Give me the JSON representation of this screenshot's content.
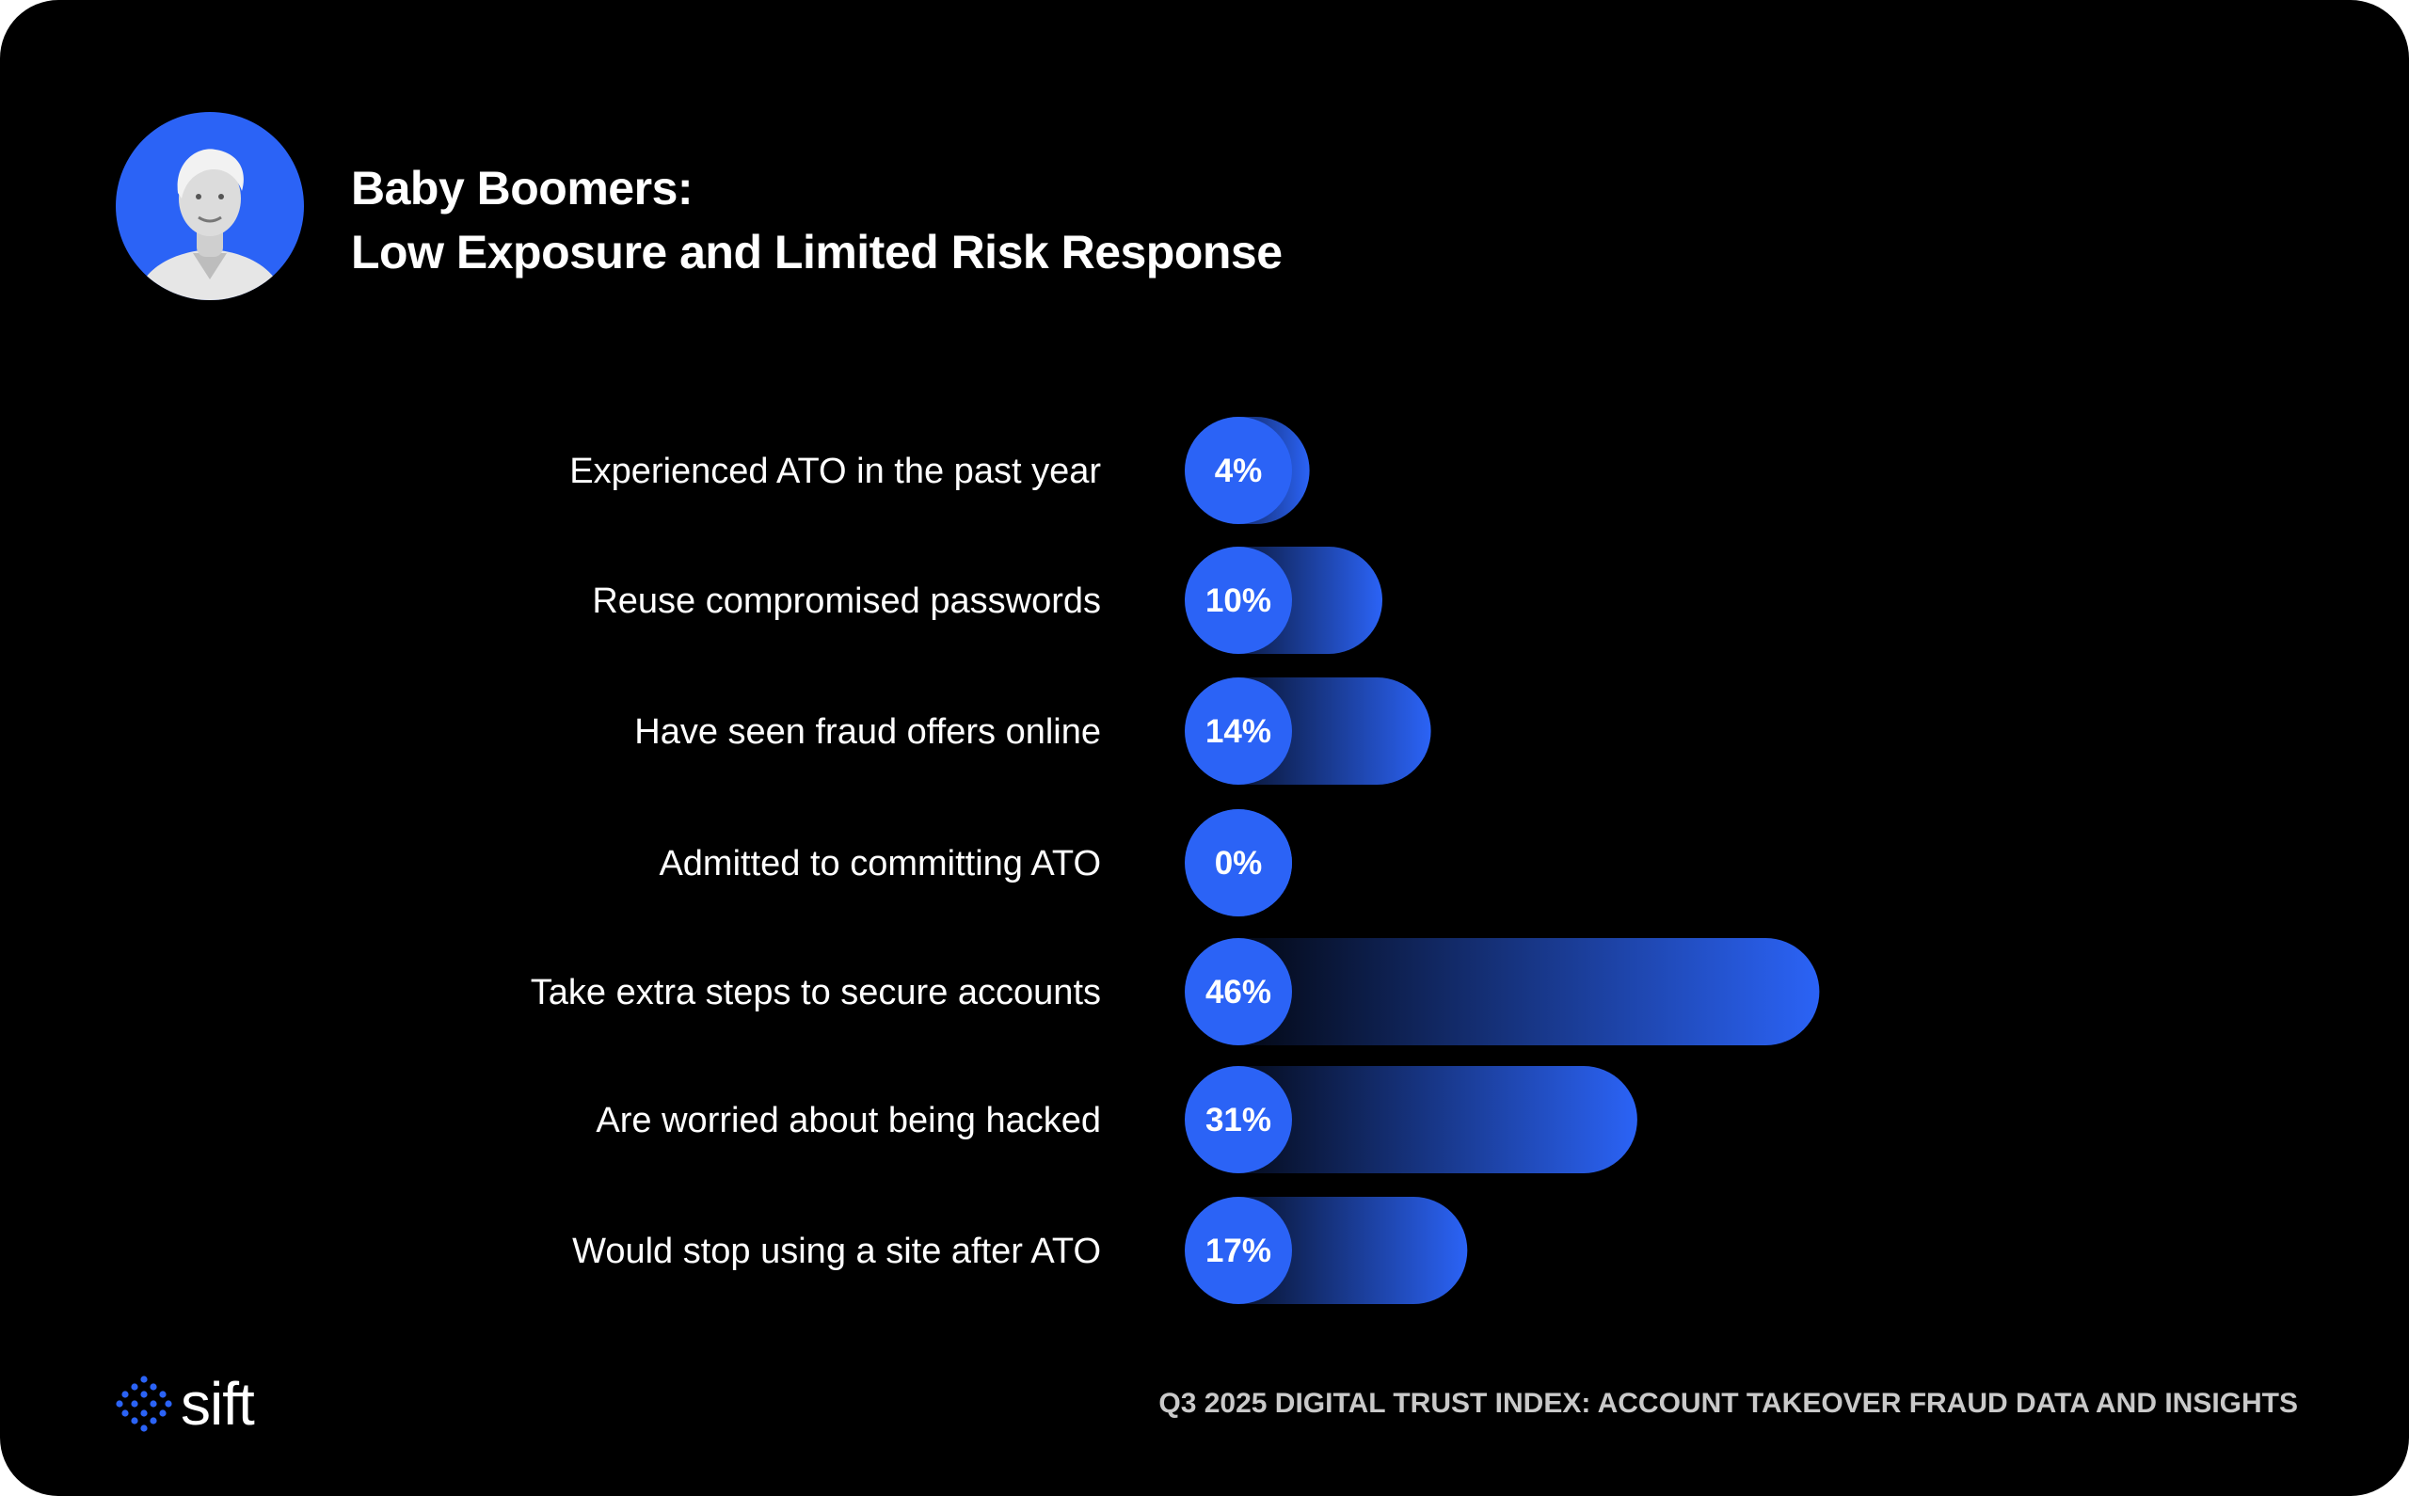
{
  "header": {
    "title_line1": "Baby Boomers:",
    "title_line2": "Low Exposure and Limited Risk Response"
  },
  "colors": {
    "accent": "#2b63f6",
    "background": "#000000",
    "footer_text": "#c9c9c9"
  },
  "chart_data": {
    "type": "bar",
    "orientation": "horizontal",
    "title": "Baby Boomers: Low Exposure and Limited Risk Response",
    "categories": [
      "Experienced ATO in the past year",
      "Reuse compromised passwords",
      "Have seen fraud offers online",
      "Admitted to committing ATO",
      "Take extra steps to secure accounts",
      "Are worried about being hacked",
      "Would stop using a site after ATO"
    ],
    "values": [
      4,
      10,
      14,
      0,
      46,
      31,
      17
    ],
    "value_labels": [
      "4%",
      "10%",
      "14%",
      "0%",
      "46%",
      "31%",
      "17%"
    ],
    "unit": "%",
    "xlim": [
      0,
      100
    ],
    "grid": false,
    "legend": "none"
  },
  "footer": {
    "brand": "sift",
    "report_title": "Q3 2025 DIGITAL TRUST INDEX: ACCOUNT TAKEOVER FRAUD DATA AND INSIGHTS"
  }
}
